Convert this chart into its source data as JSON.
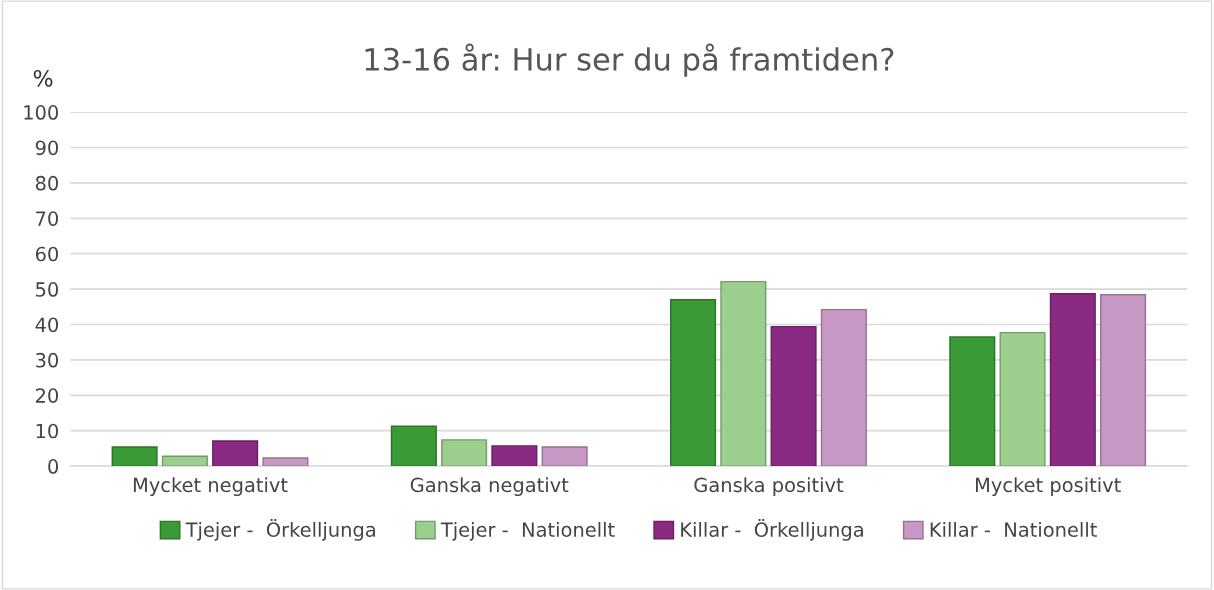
{
  "chart_data": {
    "type": "bar",
    "title": "13-16 år: Hur ser du på framtiden?",
    "ylabel": "%",
    "categories": [
      "Mycket negativt",
      "Ganska negativt",
      "Ganska positivt",
      "Mycket positivt"
    ],
    "series": [
      {
        "name": "Tjejer -  Örkelljunga",
        "color": "#3a9a35",
        "values": [
          5.4,
          11.3,
          47.0,
          36.5
        ]
      },
      {
        "name": "Tjejer -  Nationellt",
        "color": "#9ccf8e",
        "values": [
          2.8,
          7.4,
          52.1,
          37.7
        ]
      },
      {
        "name": "Killar -  Örkelljunga",
        "color": "#8b2a83",
        "values": [
          7.1,
          5.7,
          39.4,
          48.7
        ]
      },
      {
        "name": "Killar -  Nationellt",
        "color": "#c698c3",
        "values": [
          2.3,
          5.4,
          44.2,
          48.4
        ]
      }
    ],
    "ylim": [
      0,
      100
    ],
    "yticks": [
      0,
      10,
      20,
      30,
      40,
      50,
      60,
      70,
      80,
      90,
      100
    ],
    "grid": "y",
    "legend": "bottom"
  }
}
